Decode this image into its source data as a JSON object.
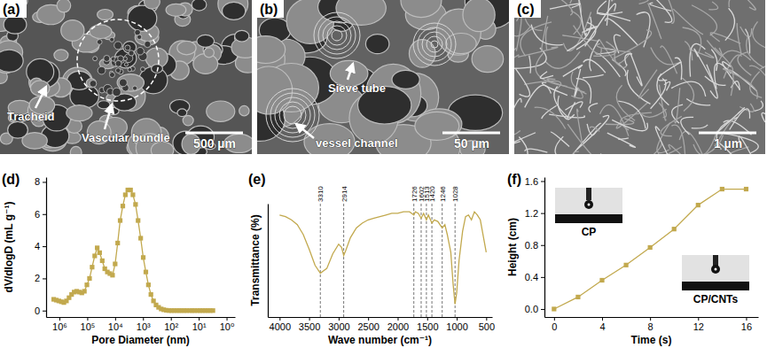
{
  "chart_data": [
    {
      "type": "line",
      "title": "(d)",
      "x_label": "Pore Diameter (nm)",
      "y_label": "dV/dlogD (mL g⁻¹)",
      "log": "x",
      "color": "#c2a94e",
      "marker": "square",
      "line_style": "solid",
      "x": [
        1600000,
        1300000,
        1050000,
        850000,
        690000,
        560000,
        450000,
        365000,
        295000,
        240000,
        194000,
        157000,
        127000,
        103000,
        83000,
        67000,
        54000,
        44000,
        36000,
        29000,
        23500,
        19000,
        15400,
        12400,
        10000,
        8100,
        6600,
        5300,
        4300,
        3500,
        2800,
        2300,
        1850,
        1500,
        1210,
        980,
        790,
        640,
        520,
        420,
        340,
        275,
        222,
        180,
        145,
        118,
        95,
        77,
        62,
        50,
        41,
        33,
        27,
        21,
        17,
        14,
        11,
        9,
        7.3,
        5.9,
        4.8,
        3.9,
        3.1
      ],
      "values": [
        0.7,
        0.65,
        0.6,
        0.55,
        0.5,
        0.6,
        0.8,
        1.0,
        1.15,
        1.2,
        1.15,
        1.1,
        1.2,
        1.6,
        2.0,
        2.7,
        3.4,
        3.9,
        3.6,
        3.1,
        2.6,
        2.4,
        2.3,
        2.2,
        2.9,
        4.2,
        5.6,
        6.5,
        7.2,
        7.5,
        7.5,
        7.2,
        6.6,
        5.6,
        4.5,
        3.3,
        2.4,
        1.6,
        1.0,
        0.6,
        0.35,
        0.2,
        0.1,
        0.05,
        0.02,
        0,
        0,
        0,
        0,
        0,
        0,
        0,
        0,
        0,
        0,
        0,
        0,
        0,
        0,
        0,
        0,
        0,
        0
      ],
      "xlim": [
        3000000,
        0.5
      ],
      "xticks": [
        {
          "value": 1000000,
          "label": "10⁶"
        },
        {
          "value": 100000,
          "label": "10⁵"
        },
        {
          "value": 10000,
          "label": "10⁴"
        },
        {
          "value": 1000,
          "label": "10³"
        },
        {
          "value": 100,
          "label": "10²"
        },
        {
          "value": 10,
          "label": "10¹"
        },
        {
          "value": 1,
          "label": "10⁰"
        }
      ],
      "ylim": [
        -0.4,
        8.3
      ],
      "yticks": [
        0,
        2,
        4,
        6,
        8
      ]
    },
    {
      "type": "line",
      "title": "(e)",
      "x_label": "Wave number (cm⁻¹)",
      "y_label": "Transmittance (%)",
      "color": "#c2a94e",
      "line_style": "solid",
      "tick_labels": "x",
      "x": [
        4000,
        3900,
        3800,
        3700,
        3600,
        3500,
        3400,
        3310,
        3200,
        3100,
        3000,
        2950,
        2914,
        2880,
        2800,
        2700,
        2600,
        2500,
        2400,
        2300,
        2200,
        2100,
        2000,
        1900,
        1800,
        1726,
        1700,
        1650,
        1602,
        1560,
        1513,
        1480,
        1420,
        1380,
        1320,
        1246,
        1200,
        1160,
        1100,
        1060,
        1028,
        1000,
        960,
        900,
        850,
        800,
        750,
        700,
        650,
        600,
        550,
        500
      ],
      "values": [
        88,
        87,
        85,
        82,
        76,
        67,
        57,
        52,
        55,
        64,
        70,
        68,
        63,
        66,
        74,
        80,
        83,
        85,
        86,
        87,
        88,
        89,
        89,
        90,
        90,
        88,
        90,
        89,
        86,
        89,
        85,
        88,
        83,
        85,
        84,
        80,
        82,
        76,
        65,
        45,
        33,
        40,
        60,
        78,
        87,
        88,
        85,
        90,
        88,
        85,
        75,
        65
      ],
      "xlim": [
        4200,
        400
      ],
      "xticks": [
        4000,
        3500,
        3000,
        2500,
        2000,
        1500,
        1000,
        500
      ],
      "ylim": [
        25,
        95
      ],
      "annotations": [
        3310,
        2914,
        1726,
        1602,
        1513,
        1420,
        1246,
        1028
      ]
    },
    {
      "type": "line",
      "title": "(f)",
      "x_label": "Time (s)",
      "y_label": "Height (cm)",
      "color": "#c2a94e",
      "marker": "square",
      "line_style": "solid",
      "x": [
        0,
        2,
        4,
        6,
        8,
        10,
        12,
        14,
        16
      ],
      "values": [
        0,
        0.15,
        0.36,
        0.55,
        0.77,
        1.0,
        1.3,
        1.5,
        1.5
      ],
      "xlim": [
        -0.8,
        17
      ],
      "xticks": [
        0,
        4,
        8,
        12,
        16
      ],
      "ylim": [
        -0.1,
        1.65
      ],
      "yticks": [
        {
          "value": 0,
          "label": "0.0"
        },
        {
          "value": 0.4,
          "label": "0.4"
        },
        {
          "value": 0.8,
          "label": "0.8"
        },
        {
          "value": 1.2,
          "label": "1.2"
        },
        {
          "value": 1.6,
          "label": "1.6"
        }
      ],
      "insets": [
        {
          "label": "CP"
        },
        {
          "label": "CP/CNTs"
        }
      ]
    }
  ],
  "images": [
    {
      "label": "(a)",
      "annotations": [
        "Tracheid",
        "Vascular bundle"
      ],
      "scale_bar": "500 µm"
    },
    {
      "label": "(b)",
      "annotations": [
        "Sieve tube",
        "vessel channel"
      ],
      "scale_bar": "50 µm"
    },
    {
      "label": "(c)",
      "annotations": [],
      "scale_bar": "1 µm"
    }
  ]
}
